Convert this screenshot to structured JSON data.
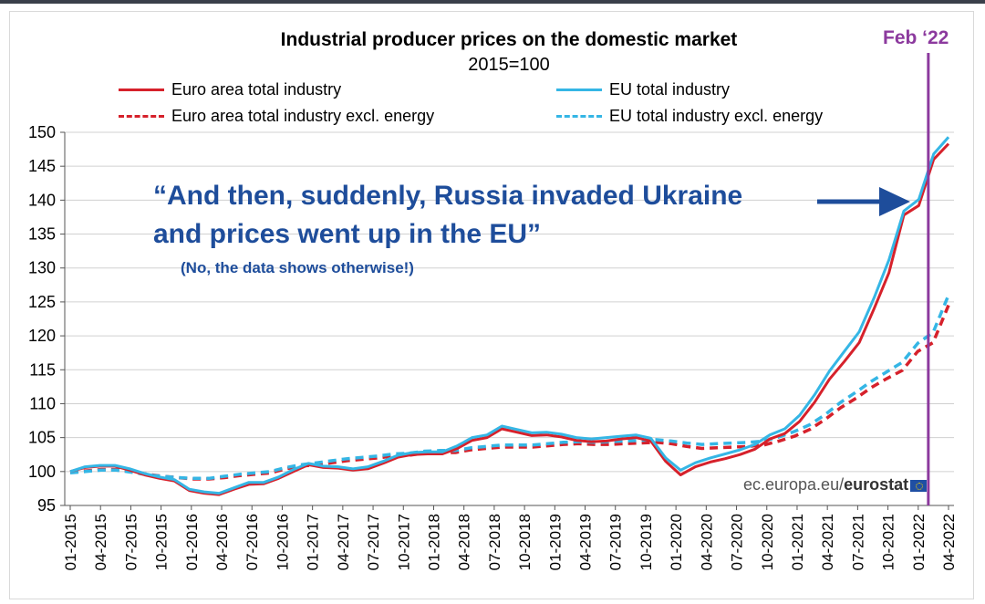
{
  "title": "Industrial producer prices on the domestic market",
  "subtitle": "2015=100",
  "colors": {
    "red": "#d6212b",
    "blue": "#35b6e5",
    "annotation": "#1e4d9b",
    "marker": "#8c3a9e"
  },
  "legend": [
    {
      "label": "Euro area total industry",
      "style": "solid-red"
    },
    {
      "label": "EU total industry",
      "style": "solid-blue"
    },
    {
      "label": "Euro area total industry excl. energy",
      "style": "dash-red"
    },
    {
      "label": "EU total industry excl. energy",
      "style": "dash-blue"
    }
  ],
  "annotation": {
    "line1": "“And then, suddenly, Russia invaded Ukraine",
    "line2": "and prices went up in the EU”",
    "line3": "(No, the data shows otherwise!)"
  },
  "marker_label": "Feb ‘22",
  "source_prefix": "ec.europa.eu/",
  "source_brand": "eurostat",
  "chart_data": {
    "type": "line",
    "title": "Industrial producer prices on the domestic market",
    "subtitle": "2015=100",
    "ylim": [
      95,
      150
    ],
    "yticks": [
      95,
      100,
      105,
      110,
      115,
      120,
      125,
      130,
      135,
      140,
      145,
      150
    ],
    "xtick_labels": [
      "01-2015",
      "04-2015",
      "07-2015",
      "10-2015",
      "01-2016",
      "04-2016",
      "07-2016",
      "10-2016",
      "01-2017",
      "04-2017",
      "07-2017",
      "10-2017",
      "01-2018",
      "04-2018",
      "07-2018",
      "10-2018",
      "01-2019",
      "04-2019",
      "07-2019",
      "10-2019",
      "01-2020",
      "04-2020",
      "07-2020",
      "10-2020",
      "01-2021",
      "04-2021",
      "07-2021",
      "10-2021",
      "01-2022",
      "04-2022"
    ],
    "marker": {
      "label": "Feb ‘22",
      "x": "02-2022"
    },
    "series": [
      {
        "name": "Euro area total industry",
        "style": "solid",
        "color": "#d6212b",
        "values": [
          100.0,
          100.6,
          100.8,
          100.8,
          100.2,
          99.5,
          99.0,
          98.6,
          97.2,
          96.8,
          96.6,
          97.4,
          98.1,
          98.2,
          99.0,
          100.0,
          101.0,
          100.6,
          100.5,
          100.2,
          100.4,
          101.2,
          102.1,
          102.5,
          102.6,
          102.6,
          103.4,
          104.6,
          105.0,
          106.3,
          105.8,
          105.3,
          105.4,
          105.1,
          104.6,
          104.4,
          104.5,
          104.8,
          105.0,
          104.5,
          101.5,
          99.5,
          100.7,
          101.4,
          101.9,
          102.5,
          103.3,
          104.8,
          105.6,
          107.4,
          110.2,
          113.6,
          116.2,
          119.0,
          124.0,
          129.3,
          137.8,
          139.2,
          146.0,
          148.3
        ]
      },
      {
        "name": "EU total industry",
        "style": "solid",
        "color": "#35b6e5",
        "values": [
          100.0,
          100.7,
          100.9,
          100.9,
          100.4,
          99.7,
          99.2,
          98.8,
          97.4,
          97.0,
          96.8,
          97.6,
          98.4,
          98.4,
          99.2,
          100.3,
          101.2,
          100.8,
          100.7,
          100.4,
          100.7,
          101.5,
          102.4,
          102.8,
          102.9,
          102.9,
          103.8,
          105.0,
          105.4,
          106.7,
          106.2,
          105.7,
          105.8,
          105.5,
          105.0,
          104.8,
          105.0,
          105.2,
          105.4,
          104.9,
          102.0,
          100.2,
          101.3,
          102.0,
          102.6,
          103.2,
          104.0,
          105.4,
          106.3,
          108.3,
          111.3,
          114.8,
          117.7,
          120.6,
          125.6,
          131.2,
          138.4,
          140.1,
          146.8,
          149.3
        ]
      },
      {
        "name": "Euro area total industry excl. energy",
        "style": "dashed",
        "color": "#d6212b",
        "values": [
          99.9,
          100.1,
          100.3,
          100.3,
          100.0,
          99.6,
          99.3,
          99.1,
          98.9,
          98.9,
          99.1,
          99.4,
          99.6,
          99.8,
          100.4,
          100.8,
          101.0,
          101.3,
          101.6,
          101.8,
          102.0,
          102.3,
          102.4,
          102.7,
          102.8,
          102.8,
          103.2,
          103.4,
          103.6,
          103.6,
          103.6,
          103.8,
          104.0,
          104.1,
          104.0,
          104.0,
          104.1,
          104.2,
          104.3,
          104.1,
          103.7,
          103.4,
          103.5,
          103.6,
          103.7,
          103.9,
          104.5,
          105.2,
          106.2,
          107.7,
          109.4,
          110.8,
          112.4,
          113.7,
          114.9,
          117.7,
          119.0,
          124.5
        ]
      },
      {
        "name": "EU total industry excl. energy",
        "style": "dashed",
        "color": "#35b6e5",
        "values": [
          99.8,
          100.0,
          100.2,
          100.2,
          99.9,
          99.5,
          99.3,
          99.1,
          99.0,
          99.0,
          99.3,
          99.6,
          99.8,
          100.0,
          100.6,
          101.0,
          101.3,
          101.6,
          101.9,
          102.1,
          102.3,
          102.6,
          102.7,
          103.0,
          103.1,
          103.1,
          103.5,
          103.7,
          103.9,
          103.9,
          103.9,
          104.1,
          104.3,
          104.4,
          104.3,
          104.4,
          104.5,
          104.6,
          104.7,
          104.5,
          104.2,
          104.0,
          104.1,
          104.2,
          104.3,
          104.5,
          105.1,
          105.9,
          106.9,
          108.4,
          110.2,
          111.7,
          113.3,
          114.7,
          116.1,
          118.9,
          120.5,
          126.0
        ]
      }
    ]
  }
}
